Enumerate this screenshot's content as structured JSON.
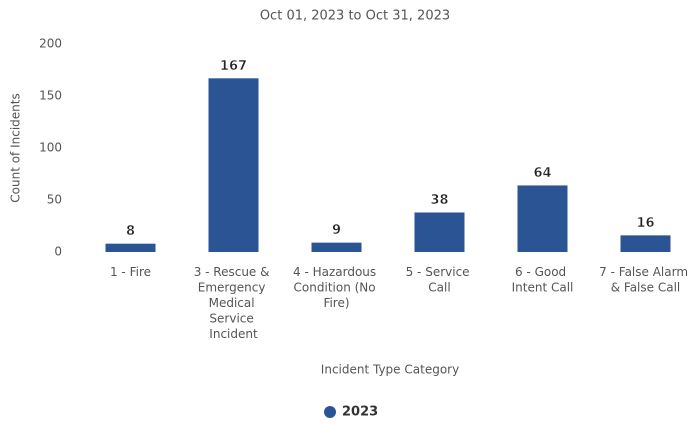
{
  "chart_data": {
    "type": "bar",
    "title": "Oct 01, 2023 to Oct 31, 2023",
    "x_label": "Incident Type Category",
    "y_label": "Count of Incidents",
    "categories": [
      "1 - Fire",
      "3 - Rescue & Emergency Medical Service Incident",
      "4 - Hazardous Condition (No Fire)",
      "5 - Service Call",
      "6 - Good Intent Call",
      "7 - False Alarm & False Call"
    ],
    "series": [
      {
        "name": "2023",
        "color": "#2b5495",
        "values": [
          8,
          167,
          9,
          38,
          64,
          16
        ]
      }
    ],
    "ylim": [
      0,
      200
    ],
    "yticks": [
      0,
      50,
      100,
      150,
      200
    ],
    "grid": false,
    "legend": "bottom"
  }
}
